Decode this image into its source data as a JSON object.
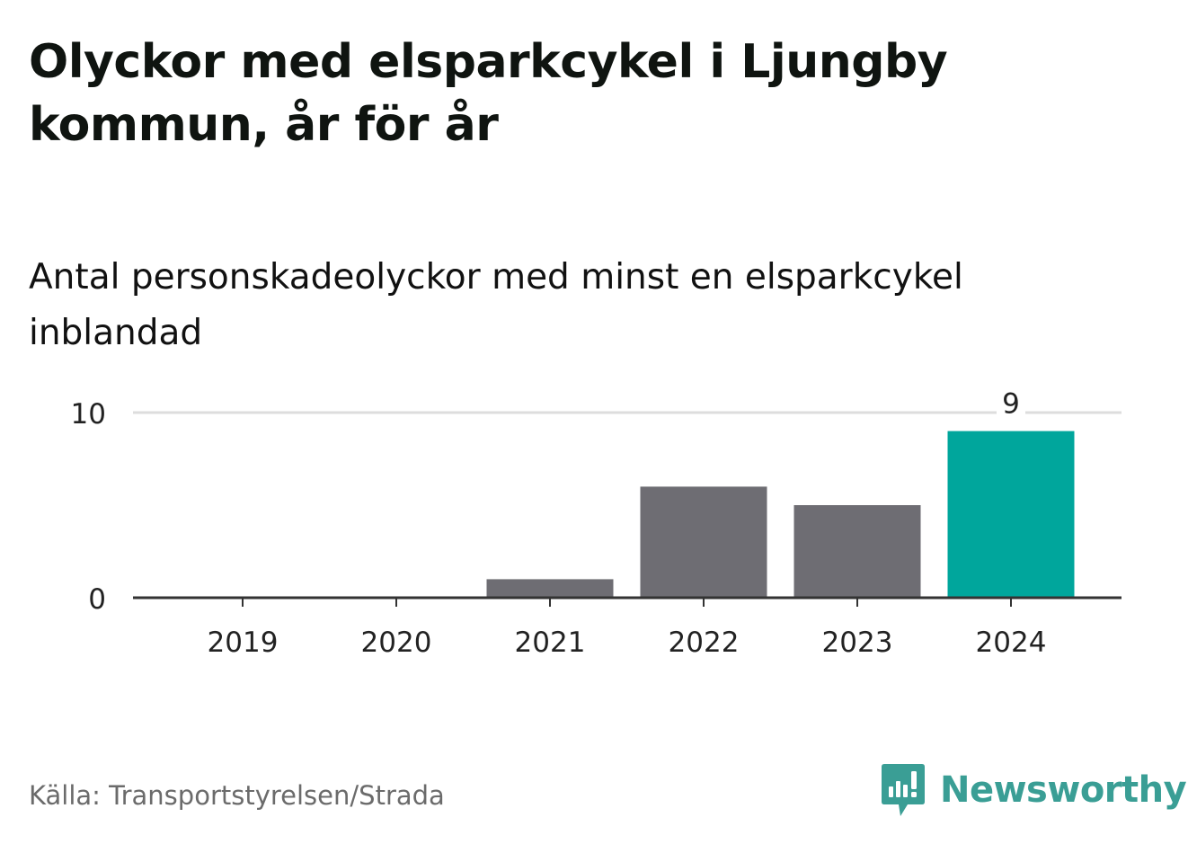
{
  "title": "Olyckor med elsparkcykel i Ljungby kommun, år för år",
  "subtitle": "Antal personskadeolyckor med minst en elsparkcykel inblandad",
  "source": "Källa: Transportstyrelsen/Strada",
  "brand": {
    "name": "Newsworthy",
    "color": "#3a9e95",
    "icon": "newsworthy-logo-icon"
  },
  "colors": {
    "bar": "#6e6d73",
    "highlight": "#00a69c",
    "grid": "#dddddd",
    "axis": "#333333"
  },
  "chart_data": {
    "type": "bar",
    "title": "Olyckor med elsparkcykel i Ljungby kommun, år för år",
    "subtitle": "Antal personskadeolyckor med minst en elsparkcykel inblandad",
    "categories": [
      "2019",
      "2020",
      "2021",
      "2022",
      "2023",
      "2024"
    ],
    "values": [
      0,
      0,
      1,
      6,
      5,
      9
    ],
    "highlight": "2024",
    "data_labels": {
      "2024": "9"
    },
    "ylim": [
      0,
      10
    ],
    "yticks": [
      0,
      10
    ],
    "grid": true,
    "xlabel": "",
    "ylabel": ""
  }
}
